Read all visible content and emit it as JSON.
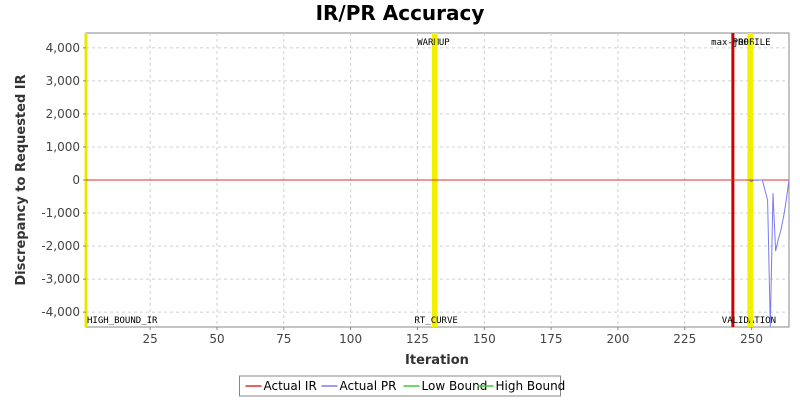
{
  "chart_data": {
    "type": "line",
    "title": "IR/PR Accuracy",
    "xlabel": "Iteration",
    "ylabel": "Discrepancy to Requested IR",
    "xlim": [
      1,
      264
    ],
    "ylim": [
      -4450,
      4450
    ],
    "x_ticks": [
      25,
      50,
      75,
      100,
      125,
      150,
      175,
      200,
      225,
      250
    ],
    "x_tick_labels": [
      "25",
      "50",
      "75",
      "100",
      "125",
      "150",
      "175",
      "200",
      "225",
      "250"
    ],
    "y_ticks": [
      4000,
      3000,
      2000,
      1000,
      0,
      -1000,
      -2000,
      -3000,
      -4000
    ],
    "y_tick_labels": [
      "4,000",
      "3,000",
      "2,000",
      "1,000",
      "0",
      "-1,000",
      "-2,000",
      "-3,000",
      "-4,000"
    ],
    "grid": true,
    "legend_position": "bottom",
    "series": [
      {
        "name": "Actual IR",
        "color": "#e03030",
        "x": [
          1,
          264
        ],
        "y": [
          0,
          0
        ]
      },
      {
        "name": "Actual PR",
        "color": "#7a7af0",
        "x": [
          249,
          250,
          251,
          252,
          253,
          254,
          255,
          256,
          257,
          258,
          259,
          260,
          261,
          262,
          263,
          264
        ],
        "y": [
          0,
          -50,
          0,
          -10,
          0,
          0,
          -300,
          -600,
          -4450,
          -400,
          -2150,
          -1800,
          -1500,
          -1100,
          -600,
          0
        ]
      },
      {
        "name": "Low Bound",
        "color": "#33cc33",
        "x": [],
        "y": []
      },
      {
        "name": "High Bound",
        "color": "#33cc33",
        "x": [],
        "y": []
      }
    ],
    "markers": [
      {
        "label": "HIGH_BOUND_IR",
        "x": 1,
        "color": "#e8e800",
        "label_pos": "bottom"
      },
      {
        "label": "WARMUP",
        "x": 131,
        "color": "#f0f000",
        "label_pos": "top"
      },
      {
        "label": "RT_CURVE",
        "x": 132,
        "color": "#f0f000",
        "label_pos": "bottom"
      },
      {
        "label": "max-jOPS",
        "x": 243,
        "color": "#cc0000",
        "label_pos": "top"
      },
      {
        "label": "VALIDATION",
        "x": 249,
        "color": "#f0f000",
        "label_pos": "bottom"
      },
      {
        "label": "PROFILE",
        "x": 250,
        "color": "#f0f000",
        "label_pos": "top"
      }
    ]
  }
}
